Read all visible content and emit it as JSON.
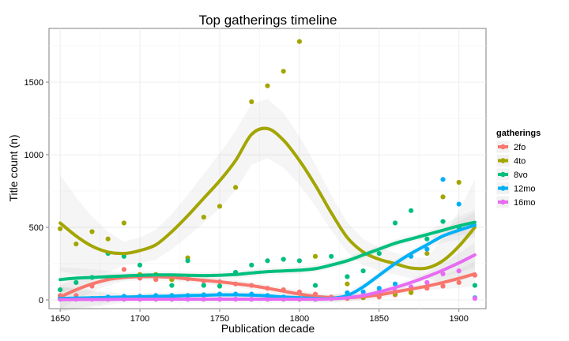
{
  "chart_data": {
    "type": "scatter",
    "title": "Top gatherings timeline",
    "xlabel": "Publication decade",
    "ylabel": "Title count (n)",
    "xlim": [
      1643,
      1917
    ],
    "ylim": [
      -60,
      1870
    ],
    "x_ticks": [
      1650,
      1700,
      1750,
      1800,
      1850,
      1900
    ],
    "y_ticks": [
      0,
      500,
      1000,
      1500
    ],
    "grid": true,
    "smoothing": "loess with confidence band",
    "legend": {
      "title": "gatherings",
      "position": "right"
    },
    "series": [
      {
        "name": "2fo",
        "color": "#F8766D",
        "points": [
          [
            1650,
            30
          ],
          [
            1660,
            30
          ],
          [
            1670,
            95
          ],
          [
            1680,
            150
          ],
          [
            1690,
            210
          ],
          [
            1700,
            150
          ],
          [
            1710,
            140
          ],
          [
            1720,
            160
          ],
          [
            1730,
            145
          ],
          [
            1740,
            130
          ],
          [
            1750,
            125
          ],
          [
            1760,
            110
          ],
          [
            1770,
            100
          ],
          [
            1780,
            80
          ],
          [
            1790,
            70
          ],
          [
            1800,
            55
          ],
          [
            1810,
            40
          ],
          [
            1820,
            20
          ],
          [
            1830,
            10
          ],
          [
            1840,
            15
          ],
          [
            1850,
            20
          ],
          [
            1860,
            35
          ],
          [
            1870,
            55
          ],
          [
            1880,
            80
          ],
          [
            1890,
            95
          ],
          [
            1900,
            120
          ],
          [
            1910,
            170
          ]
        ],
        "trend": [
          [
            1650,
            20
          ],
          [
            1660,
            70
          ],
          [
            1670,
            110
          ],
          [
            1680,
            140
          ],
          [
            1690,
            155
          ],
          [
            1700,
            160
          ],
          [
            1710,
            160
          ],
          [
            1720,
            155
          ],
          [
            1730,
            145
          ],
          [
            1740,
            135
          ],
          [
            1750,
            125
          ],
          [
            1760,
            112
          ],
          [
            1770,
            98
          ],
          [
            1780,
            80
          ],
          [
            1790,
            60
          ],
          [
            1800,
            40
          ],
          [
            1810,
            25
          ],
          [
            1820,
            15
          ],
          [
            1830,
            15
          ],
          [
            1840,
            22
          ],
          [
            1850,
            35
          ],
          [
            1860,
            55
          ],
          [
            1870,
            75
          ],
          [
            1880,
            95
          ],
          [
            1890,
            120
          ],
          [
            1900,
            148
          ],
          [
            1910,
            180
          ]
        ]
      },
      {
        "name": "4to",
        "color": "#A3A500",
        "points": [
          [
            1650,
            490
          ],
          [
            1660,
            385
          ],
          [
            1670,
            470
          ],
          [
            1680,
            420
          ],
          [
            1690,
            530
          ],
          [
            1700,
            175
          ],
          [
            1710,
            175
          ],
          [
            1720,
            140
          ],
          [
            1730,
            290
          ],
          [
            1740,
            570
          ],
          [
            1750,
            645
          ],
          [
            1760,
            775
          ],
          [
            1770,
            1365
          ],
          [
            1780,
            1475
          ],
          [
            1790,
            1575
          ],
          [
            1800,
            1780
          ],
          [
            1810,
            300
          ],
          [
            1820,
            10
          ],
          [
            1830,
            110
          ],
          [
            1840,
            15
          ],
          [
            1850,
            55
          ],
          [
            1860,
            40
          ],
          [
            1870,
            50
          ],
          [
            1880,
            320
          ],
          [
            1890,
            710
          ],
          [
            1900,
            810
          ]
        ],
        "trend": [
          [
            1650,
            530
          ],
          [
            1660,
            440
          ],
          [
            1670,
            370
          ],
          [
            1680,
            330
          ],
          [
            1690,
            320
          ],
          [
            1700,
            340
          ],
          [
            1710,
            380
          ],
          [
            1720,
            470
          ],
          [
            1730,
            580
          ],
          [
            1740,
            700
          ],
          [
            1750,
            820
          ],
          [
            1760,
            960
          ],
          [
            1770,
            1140
          ],
          [
            1780,
            1180
          ],
          [
            1790,
            1100
          ],
          [
            1800,
            960
          ],
          [
            1810,
            790
          ],
          [
            1820,
            600
          ],
          [
            1830,
            430
          ],
          [
            1840,
            330
          ],
          [
            1850,
            280
          ],
          [
            1860,
            250
          ],
          [
            1870,
            220
          ],
          [
            1880,
            220
          ],
          [
            1890,
            270
          ],
          [
            1900,
            370
          ],
          [
            1910,
            500
          ]
        ]
      },
      {
        "name": "8vo",
        "color": "#00BF7D",
        "points": [
          [
            1650,
            70
          ],
          [
            1660,
            120
          ],
          [
            1670,
            155
          ],
          [
            1680,
            320
          ],
          [
            1690,
            300
          ],
          [
            1700,
            240
          ],
          [
            1710,
            170
          ],
          [
            1720,
            100
          ],
          [
            1730,
            270
          ],
          [
            1740,
            100
          ],
          [
            1750,
            95
          ],
          [
            1760,
            190
          ],
          [
            1770,
            240
          ],
          [
            1780,
            270
          ],
          [
            1790,
            280
          ],
          [
            1800,
            270
          ],
          [
            1810,
            100
          ],
          [
            1820,
            300
          ],
          [
            1830,
            160
          ],
          [
            1840,
            200
          ],
          [
            1850,
            320
          ],
          [
            1860,
            530
          ],
          [
            1870,
            615
          ],
          [
            1880,
            420
          ],
          [
            1890,
            540
          ],
          [
            1900,
            500
          ],
          [
            1910,
            100
          ]
        ],
        "trend": [
          [
            1650,
            140
          ],
          [
            1660,
            150
          ],
          [
            1670,
            155
          ],
          [
            1680,
            160
          ],
          [
            1690,
            165
          ],
          [
            1700,
            170
          ],
          [
            1710,
            172
          ],
          [
            1720,
            172
          ],
          [
            1730,
            170
          ],
          [
            1740,
            168
          ],
          [
            1750,
            170
          ],
          [
            1760,
            175
          ],
          [
            1770,
            185
          ],
          [
            1780,
            195
          ],
          [
            1790,
            200
          ],
          [
            1800,
            205
          ],
          [
            1810,
            215
          ],
          [
            1820,
            240
          ],
          [
            1830,
            270
          ],
          [
            1840,
            310
          ],
          [
            1850,
            350
          ],
          [
            1860,
            390
          ],
          [
            1870,
            420
          ],
          [
            1880,
            450
          ],
          [
            1890,
            480
          ],
          [
            1900,
            510
          ],
          [
            1910,
            535
          ]
        ]
      },
      {
        "name": "12mo",
        "color": "#00B0F6",
        "points": [
          [
            1650,
            15
          ],
          [
            1660,
            10
          ],
          [
            1670,
            10
          ],
          [
            1680,
            20
          ],
          [
            1690,
            25
          ],
          [
            1700,
            25
          ],
          [
            1710,
            30
          ],
          [
            1720,
            30
          ],
          [
            1730,
            30
          ],
          [
            1740,
            35
          ],
          [
            1750,
            40
          ],
          [
            1760,
            40
          ],
          [
            1770,
            40
          ],
          [
            1780,
            30
          ],
          [
            1790,
            20
          ],
          [
            1800,
            10
          ],
          [
            1810,
            5
          ],
          [
            1820,
            10
          ],
          [
            1830,
            50
          ],
          [
            1840,
            55
          ],
          [
            1850,
            80
          ],
          [
            1860,
            110
          ],
          [
            1870,
            300
          ],
          [
            1880,
            350
          ],
          [
            1890,
            830
          ],
          [
            1900,
            660
          ],
          [
            1910,
            15
          ]
        ],
        "trend": [
          [
            1650,
            10
          ],
          [
            1660,
            12
          ],
          [
            1670,
            15
          ],
          [
            1680,
            17
          ],
          [
            1690,
            20
          ],
          [
            1700,
            22
          ],
          [
            1710,
            25
          ],
          [
            1720,
            27
          ],
          [
            1730,
            30
          ],
          [
            1740,
            32
          ],
          [
            1750,
            35
          ],
          [
            1760,
            35
          ],
          [
            1770,
            33
          ],
          [
            1780,
            28
          ],
          [
            1790,
            20
          ],
          [
            1800,
            15
          ],
          [
            1810,
            10
          ],
          [
            1820,
            10
          ],
          [
            1830,
            30
          ],
          [
            1840,
            90
          ],
          [
            1850,
            170
          ],
          [
            1860,
            250
          ],
          [
            1870,
            320
          ],
          [
            1880,
            380
          ],
          [
            1890,
            440
          ],
          [
            1900,
            480
          ],
          [
            1910,
            515
          ]
        ]
      },
      {
        "name": "16mo",
        "color": "#E76BF3",
        "points": [
          [
            1650,
            5
          ],
          [
            1660,
            5
          ],
          [
            1670,
            5
          ],
          [
            1680,
            5
          ],
          [
            1690,
            5
          ],
          [
            1700,
            5
          ],
          [
            1710,
            5
          ],
          [
            1720,
            5
          ],
          [
            1730,
            5
          ],
          [
            1740,
            5
          ],
          [
            1750,
            5
          ],
          [
            1760,
            5
          ],
          [
            1770,
            5
          ],
          [
            1780,
            5
          ],
          [
            1790,
            5
          ],
          [
            1800,
            5
          ],
          [
            1810,
            5
          ],
          [
            1820,
            10
          ],
          [
            1830,
            20
          ],
          [
            1840,
            30
          ],
          [
            1850,
            40
          ],
          [
            1860,
            60
          ],
          [
            1870,
            90
          ],
          [
            1880,
            120
          ],
          [
            1890,
            180
          ],
          [
            1900,
            200
          ],
          [
            1910,
            10
          ]
        ],
        "trend": [
          [
            1650,
            2
          ],
          [
            1660,
            3
          ],
          [
            1670,
            3
          ],
          [
            1680,
            4
          ],
          [
            1690,
            5
          ],
          [
            1700,
            5
          ],
          [
            1710,
            5
          ],
          [
            1720,
            5
          ],
          [
            1730,
            5
          ],
          [
            1740,
            5
          ],
          [
            1750,
            5
          ],
          [
            1760,
            5
          ],
          [
            1770,
            5
          ],
          [
            1780,
            5
          ],
          [
            1790,
            5
          ],
          [
            1800,
            5
          ],
          [
            1810,
            5
          ],
          [
            1820,
            8
          ],
          [
            1830,
            15
          ],
          [
            1840,
            30
          ],
          [
            1850,
            55
          ],
          [
            1860,
            85
          ],
          [
            1870,
            120
          ],
          [
            1880,
            160
          ],
          [
            1890,
            205
          ],
          [
            1900,
            255
          ],
          [
            1910,
            310
          ]
        ]
      }
    ]
  }
}
